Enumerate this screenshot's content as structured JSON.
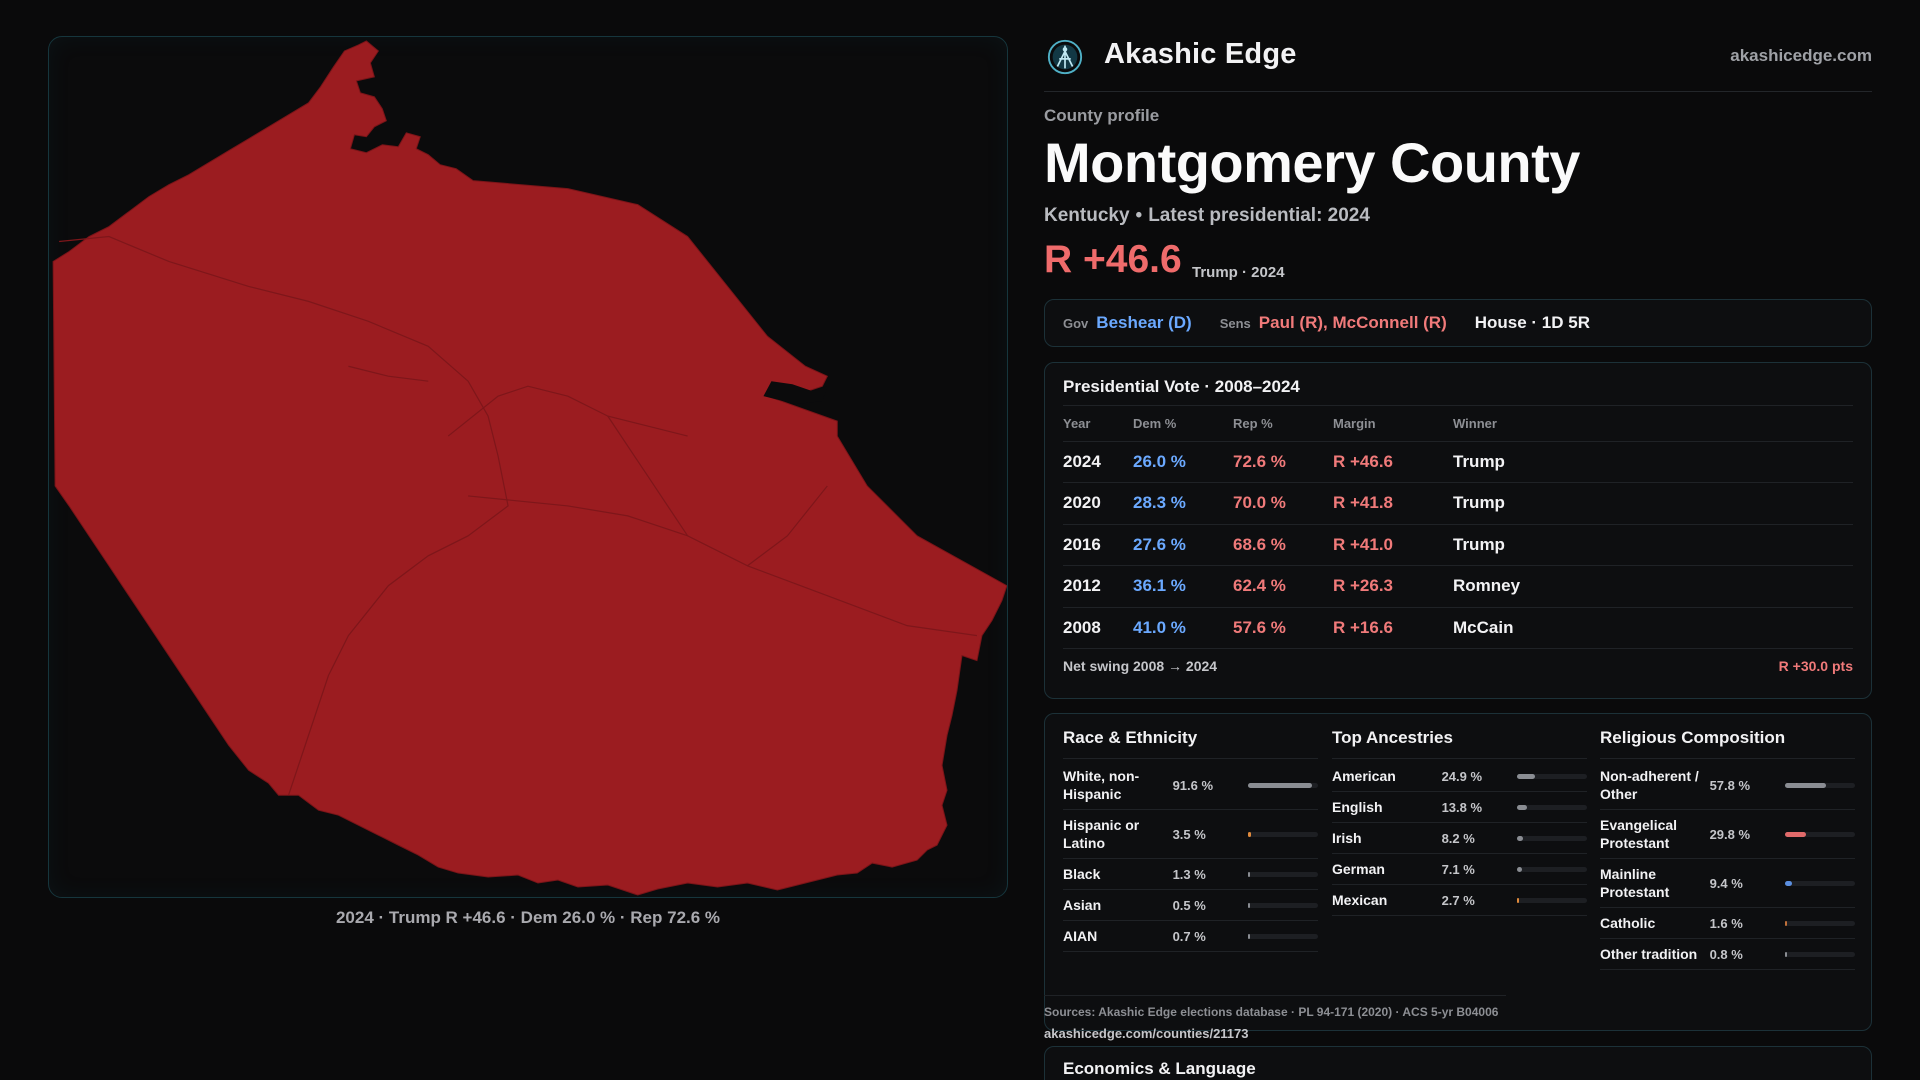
{
  "brand": {
    "name": "Akashic Edge",
    "url": "akashicedge.com",
    "logo_icon": "akashic-logo-icon"
  },
  "map": {
    "fill_color": "#9b1c20",
    "caption": "2024 · Trump R +46.6 · Dem 26.0 % · Rep 72.6 %"
  },
  "profile": {
    "eyebrow": "County profile",
    "title": "Montgomery County",
    "state": "Kentucky",
    "latest": "Latest presidential: 2024",
    "margin": "R +46.6",
    "margin_note": "Trump · 2024"
  },
  "officials": {
    "gov_label": "Gov",
    "gov": "Beshear (D)",
    "sens_label": "Sens",
    "sens": "Paul (R), McConnell (R)",
    "house": "House · 1D 5R"
  },
  "presidential": {
    "title": "Presidential Vote · 2008–2024",
    "headers": [
      "Year",
      "Dem %",
      "Rep %",
      "Margin",
      "Winner"
    ],
    "rows": [
      {
        "year": "2024",
        "dem": "26.0 %",
        "rep": "72.6 %",
        "margin": "R +46.6",
        "winner": "Trump"
      },
      {
        "year": "2020",
        "dem": "28.3 %",
        "rep": "70.0 %",
        "margin": "R +41.8",
        "winner": "Trump"
      },
      {
        "year": "2016",
        "dem": "27.6 %",
        "rep": "68.6 %",
        "margin": "R +41.0",
        "winner": "Trump"
      },
      {
        "year": "2012",
        "dem": "36.1 %",
        "rep": "62.4 %",
        "margin": "R +26.3",
        "winner": "Romney"
      },
      {
        "year": "2008",
        "dem": "41.0 %",
        "rep": "57.6 %",
        "margin": "R +16.6",
        "winner": "McCain"
      }
    ],
    "swing_label": "Net swing 2008 → 2024",
    "swing_value": "R +30.0 pts"
  },
  "demographics": {
    "race": {
      "title": "Race & Ethnicity",
      "color": "#8a8d93",
      "items": [
        {
          "label": "White, non-Hispanic",
          "pct": "91.6 %",
          "value": 91.6
        },
        {
          "label": "Hispanic or Latino",
          "pct": "3.5 %",
          "value": 3.5,
          "color": "#e08a3c"
        },
        {
          "label": "Black",
          "pct": "1.3 %",
          "value": 1.3
        },
        {
          "label": "Asian",
          "pct": "0.5 %",
          "value": 0.5
        },
        {
          "label": "AIAN",
          "pct": "0.7 %",
          "value": 0.7
        }
      ]
    },
    "ancestry": {
      "title": "Top Ancestries",
      "color": "#8a8d93",
      "items": [
        {
          "label": "American",
          "pct": "24.9 %",
          "value": 24.9
        },
        {
          "label": "English",
          "pct": "13.8 %",
          "value": 13.8
        },
        {
          "label": "Irish",
          "pct": "8.2 %",
          "value": 8.2
        },
        {
          "label": "German",
          "pct": "7.1 %",
          "value": 7.1
        },
        {
          "label": "Mexican",
          "pct": "2.7 %",
          "value": 2.7,
          "color": "#e08a3c"
        }
      ]
    },
    "religion": {
      "title": "Religious Composition",
      "color": "#8a8d93",
      "items": [
        {
          "label": "Non-adherent / Other",
          "pct": "57.8 %",
          "value": 57.8
        },
        {
          "label": "Evangelical Protestant",
          "pct": "29.8 %",
          "value": 29.8,
          "color": "#e06a6a"
        },
        {
          "label": "Mainline Protestant",
          "pct": "9.4 %",
          "value": 9.4,
          "color": "#5b8fe0"
        },
        {
          "label": "Catholic",
          "pct": "1.6 %",
          "value": 1.6,
          "color": "#c0703a"
        },
        {
          "label": "Other tradition",
          "pct": "0.8 %",
          "value": 0.8
        }
      ]
    }
  },
  "sources": {
    "text": "Sources: Akashic Edge elections database · PL 94-171 (2020) · ACS 5-yr B04006",
    "url": "akashicedge.com/counties/21173"
  },
  "economics": {
    "title": "Economics & Language"
  }
}
